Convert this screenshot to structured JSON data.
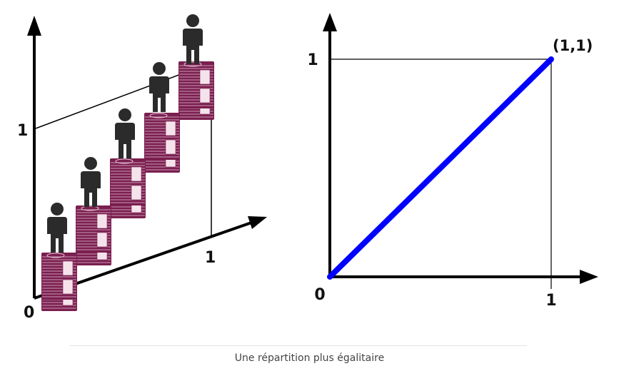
{
  "left_diagram": {
    "origin_label": "0",
    "y_tick_label": "1",
    "x_tick_label": "1",
    "people_count": 5,
    "currency_symbol": "€",
    "icons": [
      "person-icon",
      "banknote-stack-icon"
    ],
    "colors": {
      "person": "#2b2b2b",
      "banknotes": "#7a1f4f"
    }
  },
  "chart_data": {
    "type": "line",
    "series": [
      {
        "x": [
          0,
          1
        ],
        "y": [
          0,
          1
        ],
        "color": "#0000ff"
      }
    ],
    "xlim": [
      0,
      1
    ],
    "ylim": [
      0,
      1
    ],
    "x_ticks": [
      "0",
      "1"
    ],
    "y_ticks": [
      "1"
    ],
    "annotations": [
      {
        "text": "(1,1)",
        "x": 1,
        "y": 1
      }
    ],
    "grid": false
  },
  "caption": "Une répartition plus égalitaire"
}
